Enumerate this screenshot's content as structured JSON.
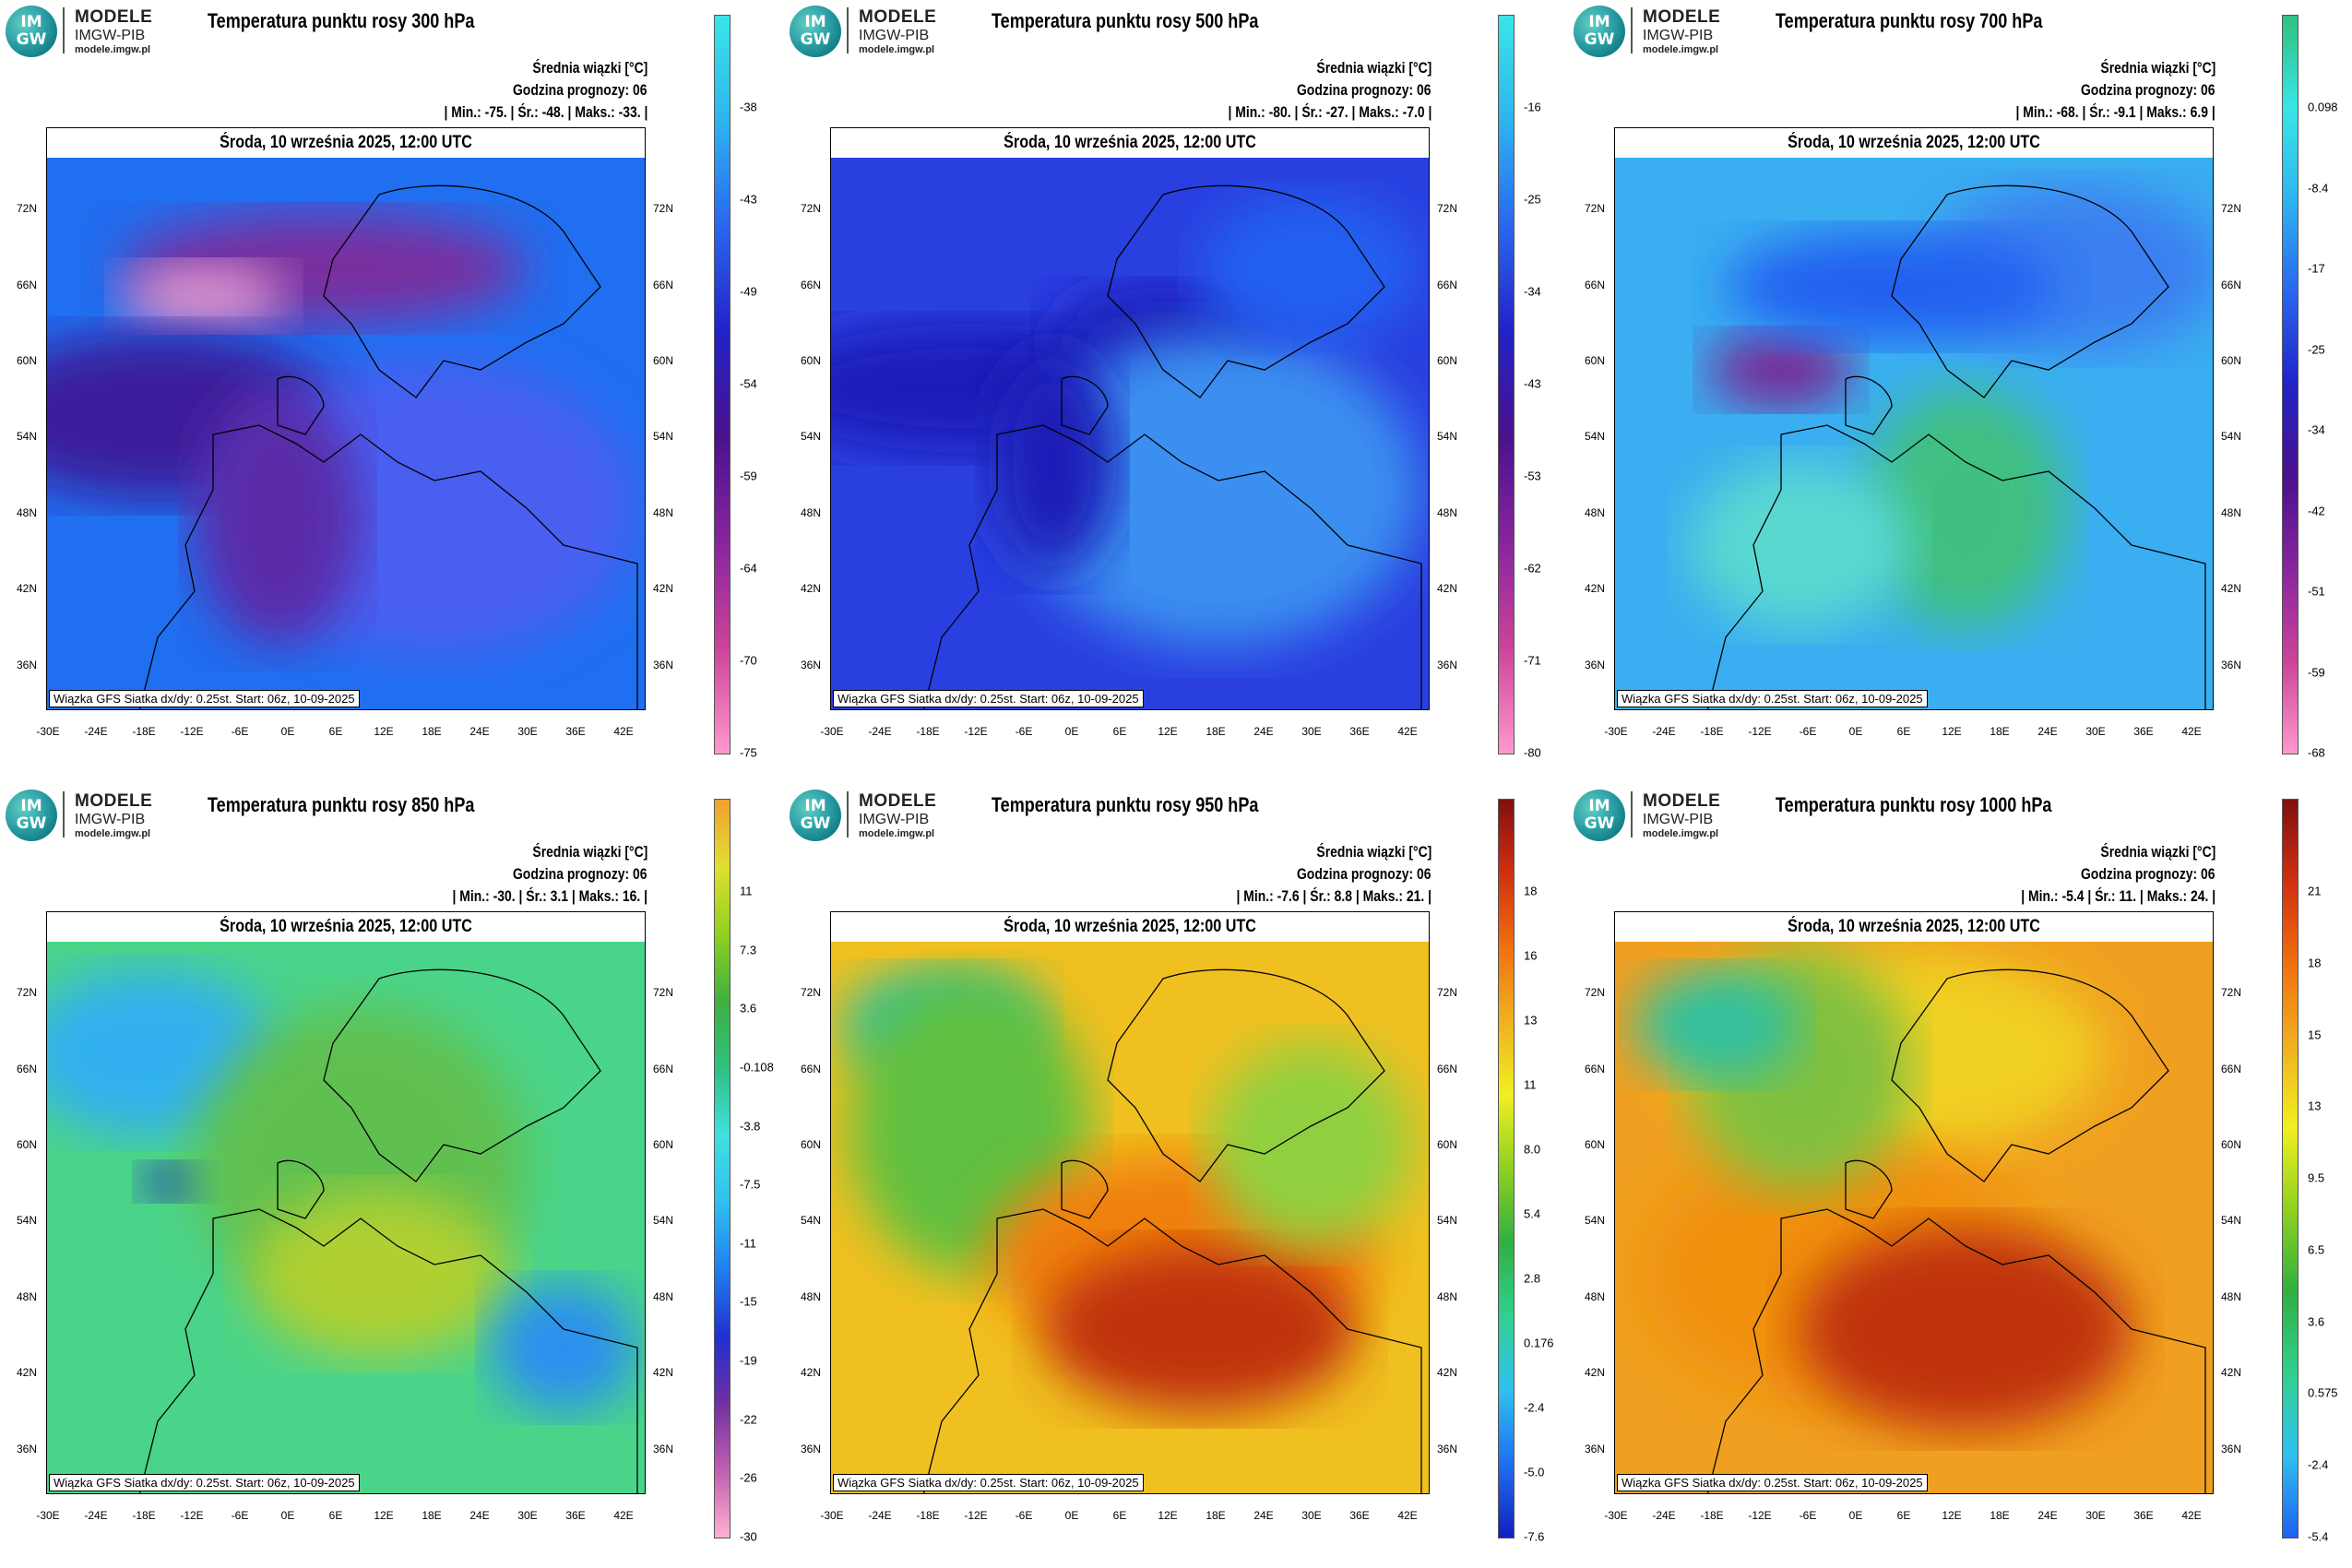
{
  "logo": {
    "globe_top": "IM",
    "globe_bottom": "GW",
    "line1": "MODELE",
    "line2": "IMGW-PIB",
    "line3": "modele.imgw.pl"
  },
  "colors": {
    "land_border": "#000000",
    "background": "#ffffff"
  },
  "common": {
    "stats_heading": "Średnia wiązki [°C]",
    "forecast_hour": "Godzina prognozy: 06",
    "date": "Środa, 10 września 2025, 12:00 UTC",
    "footer": "Wiązka GFS Siatka dx/dy: 0.25st. Start: 06z, 10-09-2025",
    "lat_labels": [
      "72N",
      "66N",
      "60N",
      "54N",
      "48N",
      "42N",
      "36N"
    ],
    "lon_labels": [
      "-30E",
      "-24E",
      "-18E",
      "-12E",
      "-6E",
      "0E",
      "6E",
      "12E",
      "18E",
      "24E",
      "30E",
      "36E",
      "42E"
    ]
  },
  "chart_data": [
    {
      "type": "heatmap",
      "title": "Temperatura punktu rosy 300 hPa",
      "level_hpa": 300,
      "stats": "| Min.:   -75. | Śr.:   -48. | Maks.:   -33. |",
      "min": -75,
      "mean": -48,
      "max": -33,
      "colorbar_ticks": [
        "-38",
        "-43",
        "-49",
        "-54",
        "-59",
        "-64",
        "-70",
        "-75"
      ]
    },
    {
      "type": "heatmap",
      "title": "Temperatura punktu rosy 500 hPa",
      "level_hpa": 500,
      "stats": "| Min.:   -80. | Śr.:   -27. | Maks.:   -7.0 |",
      "min": -80,
      "mean": -27,
      "max": -7.0,
      "colorbar_ticks": [
        "-16",
        "-25",
        "-34",
        "-43",
        "-53",
        "-62",
        "-71",
        "-80"
      ]
    },
    {
      "type": "heatmap",
      "title": "Temperatura punktu rosy 700 hPa",
      "level_hpa": 700,
      "stats": "| Min.:   -68. | Śr.:   -9.1 | Maks.:   6.9 |",
      "min": -68,
      "mean": -9.1,
      "max": 6.9,
      "colorbar_ticks": [
        "0.098",
        "-8.4",
        "-17",
        "-25",
        "-34",
        "-42",
        "-51",
        "-59",
        "-68"
      ]
    },
    {
      "type": "heatmap",
      "title": "Temperatura punktu rosy 850 hPa",
      "level_hpa": 850,
      "stats": "| Min.:   -30. | Śr.:   3.1 | Maks.:   16. |",
      "min": -30,
      "mean": 3.1,
      "max": 16,
      "colorbar_ticks": [
        "11",
        "7.3",
        "3.6",
        "-0.108",
        "-3.8",
        "-7.5",
        "-11",
        "-15",
        "-19",
        "-22",
        "-26",
        "-30"
      ]
    },
    {
      "type": "heatmap",
      "title": "Temperatura punktu rosy 950 hPa",
      "level_hpa": 950,
      "stats": "| Min.:   -7.6 | Śr.:   8.8 | Maks.:   21. |",
      "min": -7.6,
      "mean": 8.8,
      "max": 21,
      "colorbar_ticks": [
        "18",
        "16",
        "13",
        "11",
        "8.0",
        "5.4",
        "2.8",
        "0.176",
        "-2.4",
        "-5.0",
        "-7.6"
      ]
    },
    {
      "type": "heatmap",
      "title": "Temperatura punktu rosy 1000 hPa",
      "level_hpa": 1000,
      "stats": "| Min.:   -5.4 | Śr.:   11. | Maks.:   24. |",
      "min": -5.4,
      "mean": 11,
      "max": 24,
      "colorbar_ticks": [
        "21",
        "18",
        "15",
        "13",
        "9.5",
        "6.5",
        "3.6",
        "0.575",
        "-2.4",
        "-5.4"
      ]
    }
  ]
}
